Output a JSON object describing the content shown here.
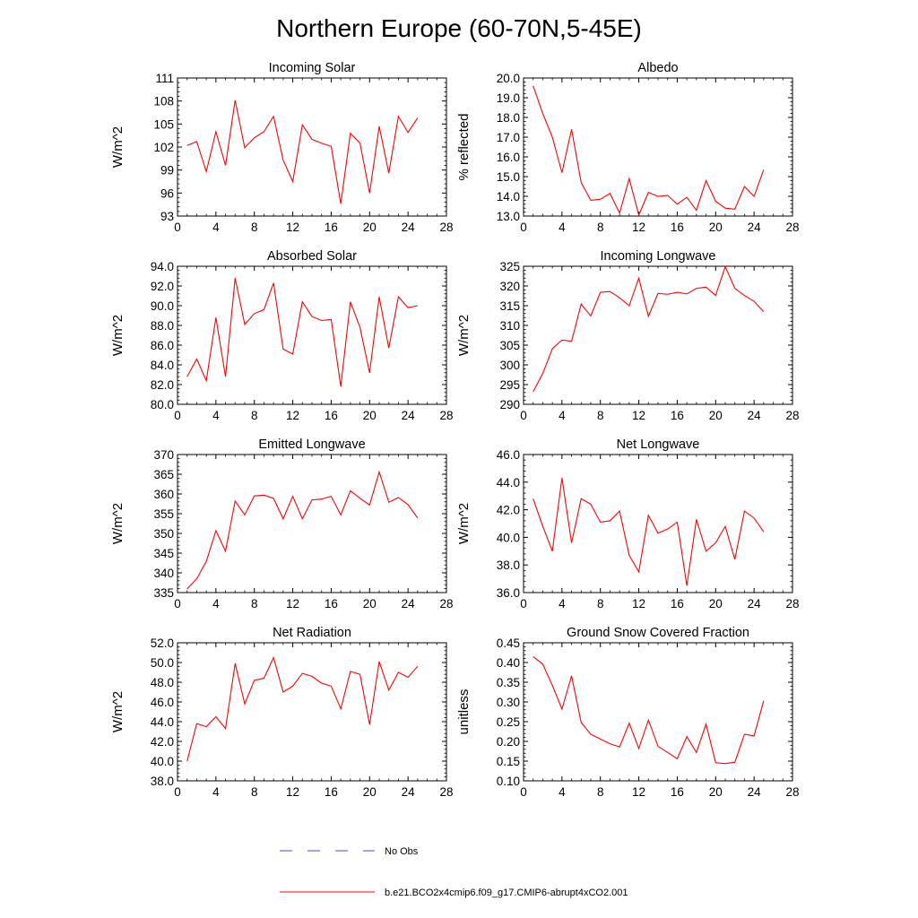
{
  "title": "Northern Europe (60-70N,5-45E)",
  "legend": [
    {
      "label": "No Obs",
      "color": "#4b4bdc",
      "dash": true
    },
    {
      "label": "b.e21.BCO2x4cmip6.f09_g17.CMIP6-abrupt4xCO2.001",
      "color": "#ff0000",
      "dash": false
    }
  ],
  "chart_data": [
    {
      "type": "line",
      "title": "Incoming Solar",
      "ylabel": "W/m^2",
      "xlim": [
        0,
        28
      ],
      "xticks": [
        "0",
        "4",
        "8",
        "12",
        "16",
        "20",
        "24",
        "28"
      ],
      "xtick_values": [
        0,
        4,
        8,
        12,
        16,
        20,
        24,
        28
      ],
      "ylim": [
        93,
        111
      ],
      "yticks": [
        "93",
        "96",
        "99",
        "102",
        "105",
        "108",
        "111"
      ],
      "ytick_values": [
        93,
        96,
        99,
        102,
        105,
        108,
        111
      ],
      "series": [
        {
          "color": "#ff0000",
          "x": [
            1,
            2,
            3,
            4,
            5,
            6,
            7,
            8,
            9,
            10,
            11,
            12,
            13,
            14,
            15,
            16,
            17,
            18,
            19,
            20,
            21,
            22,
            23,
            24,
            25
          ],
          "y": [
            102.2,
            102.7,
            98.8,
            104.0,
            99.6,
            108.1,
            101.9,
            103.2,
            104.0,
            106.0,
            100.3,
            97.5,
            104.9,
            103.0,
            102.5,
            102.1,
            94.6,
            103.8,
            102.5,
            96.0,
            104.7,
            98.6,
            106.0,
            103.9,
            105.8
          ]
        }
      ]
    },
    {
      "type": "line",
      "title": "Albedo",
      "ylabel": "% reflected",
      "xlim": [
        0,
        28
      ],
      "xticks": [
        "0",
        "4",
        "8",
        "12",
        "16",
        "20",
        "24",
        "28"
      ],
      "xtick_values": [
        0,
        4,
        8,
        12,
        16,
        20,
        24,
        28
      ],
      "ylim": [
        13.0,
        20.0
      ],
      "yticks": [
        "13.0",
        "14.0",
        "15.0",
        "16.0",
        "17.0",
        "18.0",
        "19.0",
        "20.0"
      ],
      "ytick_values": [
        13,
        14,
        15,
        16,
        17,
        18,
        19,
        20
      ],
      "series": [
        {
          "color": "#ff0000",
          "x": [
            1,
            2,
            3,
            4,
            5,
            6,
            7,
            8,
            9,
            10,
            11,
            12,
            13,
            14,
            15,
            16,
            17,
            18,
            19,
            20,
            21,
            22,
            23,
            24,
            25
          ],
          "y": [
            19.6,
            18.2,
            17.0,
            15.2,
            17.4,
            14.7,
            13.8,
            13.85,
            14.15,
            13.15,
            14.9,
            13.05,
            14.2,
            14.0,
            14.05,
            13.6,
            13.95,
            13.3,
            14.8,
            13.75,
            13.4,
            13.35,
            14.5,
            14.0,
            15.35
          ]
        }
      ]
    },
    {
      "type": "line",
      "title": "Absorbed Solar",
      "ylabel": "W/m^2",
      "xlim": [
        0,
        28
      ],
      "xticks": [
        "0",
        "4",
        "8",
        "12",
        "16",
        "20",
        "24",
        "28"
      ],
      "xtick_values": [
        0,
        4,
        8,
        12,
        16,
        20,
        24,
        28
      ],
      "ylim": [
        80.0,
        94.0
      ],
      "yticks": [
        "80.0",
        "82.0",
        "84.0",
        "86.0",
        "88.0",
        "90.0",
        "92.0",
        "94.0"
      ],
      "ytick_values": [
        80,
        82,
        84,
        86,
        88,
        90,
        92,
        94
      ],
      "series": [
        {
          "color": "#ff0000",
          "x": [
            1,
            2,
            3,
            4,
            5,
            6,
            7,
            8,
            9,
            10,
            11,
            12,
            13,
            14,
            15,
            16,
            17,
            18,
            19,
            20,
            21,
            22,
            23,
            24,
            25
          ],
          "y": [
            82.8,
            84.6,
            82.4,
            88.8,
            82.8,
            92.8,
            88.1,
            89.2,
            89.6,
            92.3,
            85.6,
            85.1,
            90.4,
            88.9,
            88.5,
            88.6,
            81.8,
            90.4,
            87.8,
            83.2,
            90.9,
            85.7,
            90.9,
            89.8,
            90.0
          ]
        }
      ]
    },
    {
      "type": "line",
      "title": "Incoming Longwave",
      "ylabel": "W/m^2",
      "xlim": [
        0,
        28
      ],
      "xticks": [
        "0",
        "4",
        "8",
        "12",
        "16",
        "20",
        "24",
        "28"
      ],
      "xtick_values": [
        0,
        4,
        8,
        12,
        16,
        20,
        24,
        28
      ],
      "ylim": [
        290,
        325
      ],
      "yticks": [
        "290",
        "295",
        "300",
        "305",
        "310",
        "315",
        "320",
        "325"
      ],
      "ytick_values": [
        290,
        295,
        300,
        305,
        310,
        315,
        320,
        325
      ],
      "series": [
        {
          "color": "#ff0000",
          "x": [
            1,
            2,
            3,
            4,
            5,
            6,
            7,
            8,
            9,
            10,
            11,
            12,
            13,
            14,
            15,
            16,
            17,
            18,
            19,
            20,
            21,
            22,
            23,
            24,
            25
          ],
          "y": [
            293.2,
            297.8,
            304.1,
            306.3,
            306.0,
            315.4,
            312.4,
            318.4,
            318.6,
            317.0,
            315.0,
            322.0,
            312.3,
            318.1,
            317.9,
            318.4,
            318.0,
            319.4,
            319.7,
            317.6,
            324.9,
            319.4,
            317.6,
            316.1,
            313.5
          ]
        }
      ]
    },
    {
      "type": "line",
      "title": "Emitted Longwave",
      "ylabel": "W/m^2",
      "xlim": [
        0,
        28
      ],
      "xticks": [
        "0",
        "4",
        "8",
        "12",
        "16",
        "20",
        "24",
        "28"
      ],
      "xtick_values": [
        0,
        4,
        8,
        12,
        16,
        20,
        24,
        28
      ],
      "ylim": [
        335,
        370
      ],
      "yticks": [
        "335",
        "340",
        "345",
        "350",
        "355",
        "360",
        "365",
        "370"
      ],
      "ytick_values": [
        335,
        340,
        345,
        350,
        355,
        360,
        365,
        370
      ],
      "series": [
        {
          "color": "#ff0000",
          "x": [
            1,
            2,
            3,
            4,
            5,
            6,
            7,
            8,
            9,
            10,
            11,
            12,
            13,
            14,
            15,
            16,
            17,
            18,
            19,
            20,
            21,
            22,
            23,
            24,
            25
          ],
          "y": [
            335.9,
            338.5,
            342.9,
            350.7,
            345.5,
            358.2,
            354.7,
            359.5,
            359.7,
            358.9,
            353.7,
            359.4,
            353.7,
            358.5,
            358.7,
            359.4,
            354.7,
            360.8,
            358.9,
            357.2,
            365.6,
            357.9,
            359.1,
            357.3,
            353.9
          ]
        }
      ]
    },
    {
      "type": "line",
      "title": "Net Longwave",
      "ylabel": "W/m^2",
      "xlim": [
        0,
        28
      ],
      "xticks": [
        "0",
        "4",
        "8",
        "12",
        "16",
        "20",
        "24",
        "28"
      ],
      "xtick_values": [
        0,
        4,
        8,
        12,
        16,
        20,
        24,
        28
      ],
      "ylim": [
        36.0,
        46.0
      ],
      "yticks": [
        "36.0",
        "38.0",
        "40.0",
        "42.0",
        "44.0",
        "46.0"
      ],
      "ytick_values": [
        36,
        38,
        40,
        42,
        44,
        46
      ],
      "series": [
        {
          "color": "#ff0000",
          "x": [
            1,
            2,
            3,
            4,
            5,
            6,
            7,
            8,
            9,
            10,
            11,
            12,
            13,
            14,
            15,
            16,
            17,
            18,
            19,
            20,
            21,
            22,
            23,
            24,
            25
          ],
          "y": [
            42.8,
            40.8,
            39.0,
            44.3,
            39.6,
            42.8,
            42.4,
            41.1,
            41.2,
            41.9,
            38.7,
            37.5,
            41.6,
            40.3,
            40.6,
            41.1,
            36.5,
            41.3,
            39.0,
            39.6,
            40.8,
            38.4,
            41.9,
            41.4,
            40.4
          ]
        }
      ]
    },
    {
      "type": "line",
      "title": "Net Radiation",
      "ylabel": "W/m^2",
      "xlim": [
        0,
        28
      ],
      "xticks": [
        "0",
        "4",
        "8",
        "12",
        "16",
        "20",
        "24",
        "28"
      ],
      "xtick_values": [
        0,
        4,
        8,
        12,
        16,
        20,
        24,
        28
      ],
      "ylim": [
        38.0,
        52.0
      ],
      "yticks": [
        "38.0",
        "40.0",
        "42.0",
        "44.0",
        "46.0",
        "48.0",
        "50.0",
        "52.0"
      ],
      "ytick_values": [
        38,
        40,
        42,
        44,
        46,
        48,
        50,
        52
      ],
      "series": [
        {
          "color": "#ff0000",
          "x": [
            1,
            2,
            3,
            4,
            5,
            6,
            7,
            8,
            9,
            10,
            11,
            12,
            13,
            14,
            15,
            16,
            17,
            18,
            19,
            20,
            21,
            22,
            23,
            24,
            25
          ],
          "y": [
            40.0,
            43.8,
            43.5,
            44.5,
            43.3,
            49.9,
            45.8,
            48.2,
            48.4,
            50.5,
            47.0,
            47.6,
            48.9,
            48.6,
            47.9,
            47.6,
            45.3,
            49.1,
            48.8,
            43.7,
            50.1,
            47.2,
            49.0,
            48.5,
            49.6
          ]
        }
      ]
    },
    {
      "type": "line",
      "title": "Ground Snow Covered Fraction",
      "ylabel": "unitless",
      "xlim": [
        0,
        28
      ],
      "xticks": [
        "0",
        "4",
        "8",
        "12",
        "16",
        "20",
        "24",
        "28"
      ],
      "xtick_values": [
        0,
        4,
        8,
        12,
        16,
        20,
        24,
        28
      ],
      "ylim": [
        0.1,
        0.45
      ],
      "yticks": [
        "0.10",
        "0.15",
        "0.20",
        "0.25",
        "0.30",
        "0.35",
        "0.40",
        "0.45"
      ],
      "ytick_values": [
        0.1,
        0.15,
        0.2,
        0.25,
        0.3,
        0.35,
        0.4,
        0.45
      ],
      "series": [
        {
          "color": "#ff0000",
          "x": [
            1,
            2,
            3,
            4,
            5,
            6,
            7,
            8,
            9,
            10,
            11,
            12,
            13,
            14,
            15,
            16,
            17,
            18,
            19,
            20,
            21,
            22,
            23,
            24,
            25
          ],
          "y": [
            0.415,
            0.396,
            0.342,
            0.282,
            0.366,
            0.248,
            0.218,
            0.206,
            0.194,
            0.186,
            0.246,
            0.182,
            0.254,
            0.188,
            0.172,
            0.156,
            0.212,
            0.172,
            0.244,
            0.146,
            0.144,
            0.147,
            0.218,
            0.214,
            0.303
          ]
        }
      ]
    }
  ]
}
